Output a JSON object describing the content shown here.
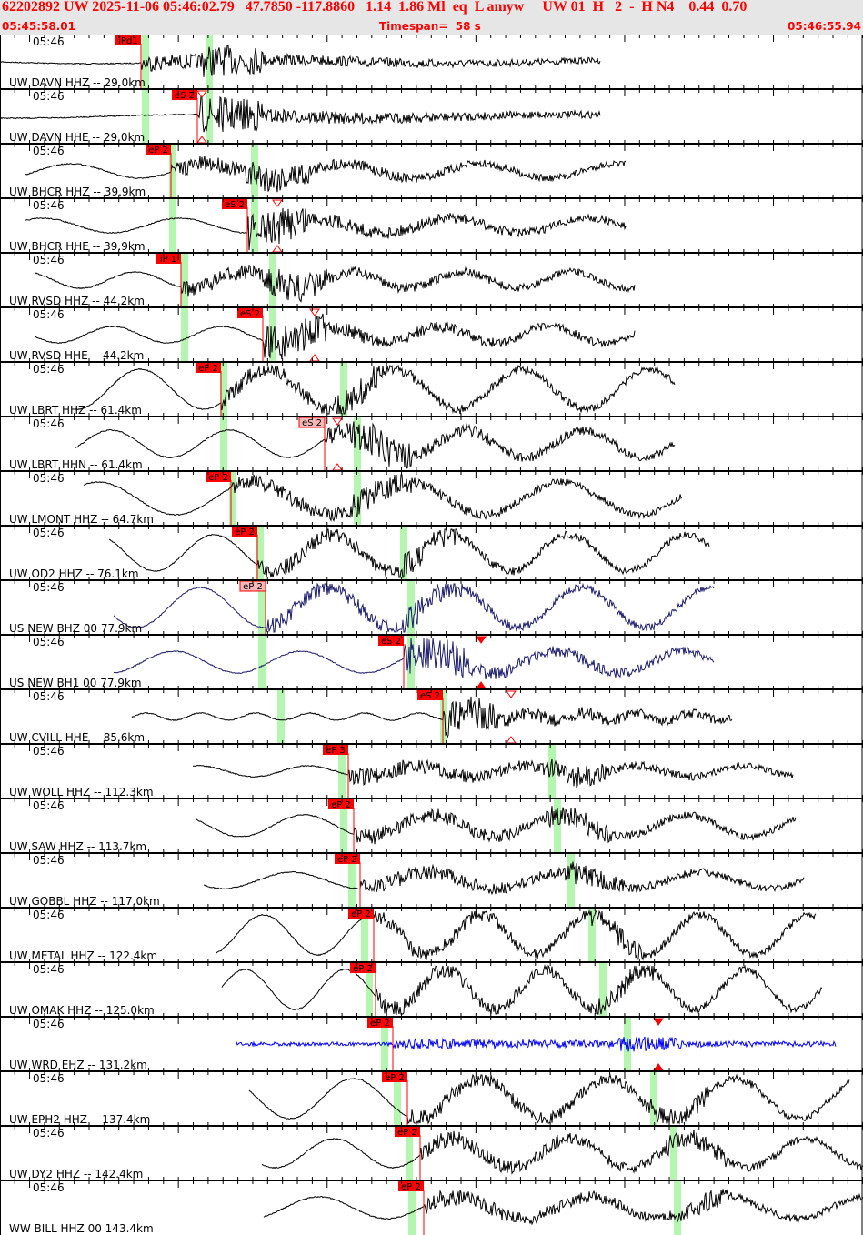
{
  "header": {
    "title": "62202892 UW 2025-11-06 05:46:02.79   47.7850 -117.8860   1.14  1.86 Ml  eq  L amyw     UW 01  H   2  -  H N4    0.44  0.70",
    "start_time": "05:45:58.01",
    "timespan": "Timespan=  58 s",
    "end_time": "05:46:55.94"
  },
  "colors": {
    "header_text": "#ff0000",
    "pick": "#ff0000",
    "pick_pending": "#f4b8b8",
    "theoretical_band": "#b4f5b0",
    "trace_default": "#000000",
    "trace_us": "#1c1c6e",
    "trace_ehz": "#0000ff"
  },
  "time_tick_label": "05:46",
  "traces": [
    {
      "label": "UW DAVN HHZ -- 29.0km",
      "pick": "iPd1"
    },
    {
      "label": "UW DAVN HHE -- 29.0km",
      "pick": "eS 2"
    },
    {
      "label": "UW BHCR HHZ -- 39.9km",
      "pick": "eP 2"
    },
    {
      "label": "UW BHCR HHE -- 39.9km",
      "pick": "eS 2"
    },
    {
      "label": "UW RVSD HHZ -- 44.2km",
      "pick": "iP 1"
    },
    {
      "label": "UW RVSD HHE -- 44.2km",
      "pick": "eS 2"
    },
    {
      "label": "UW LBRT HHZ -- 61.4km",
      "pick": "eP 2"
    },
    {
      "label": "UW LBRT HHN -- 61.4km",
      "pick": "eS 2",
      "pending": true
    },
    {
      "label": "UW LMONT HHZ -- 64.7km",
      "pick": "eP 2"
    },
    {
      "label": "UW OD2 HHZ -- 76.1km",
      "pick": "eP 2"
    },
    {
      "label": "US NEW BHZ 00 77.9km",
      "pick": "eP 2",
      "pending": true
    },
    {
      "label": "US NEW BH1 00 77.9km",
      "pick": "eS 2"
    },
    {
      "label": "UW CVILL HHE -- 85.6km",
      "pick": "eS 2"
    },
    {
      "label": "UW WOLL HHZ -- 112.3km",
      "pick": "eP 3"
    },
    {
      "label": "UW SAW HHZ -- 113.7km",
      "pick": "eP 2"
    },
    {
      "label": "UW GOBBL HHZ -- 117.0km",
      "pick": "eP 2"
    },
    {
      "label": "UW METAL HHZ -- 122.4km",
      "pick": "eP 2"
    },
    {
      "label": "UW OMAK HHZ -- 125.0km",
      "pick": "eP 2"
    },
    {
      "label": "UW WRD EHZ -- 131.2km",
      "pick": "eP 2"
    },
    {
      "label": "UW EPH2 HHZ -- 137.4km",
      "pick": "eP 2"
    },
    {
      "label": "UW DY2 HHZ -- 142.4km",
      "pick": "eP 2"
    },
    {
      "label": "WW BILL HHZ 00 143.4km",
      "pick": "eP 2"
    }
  ]
}
